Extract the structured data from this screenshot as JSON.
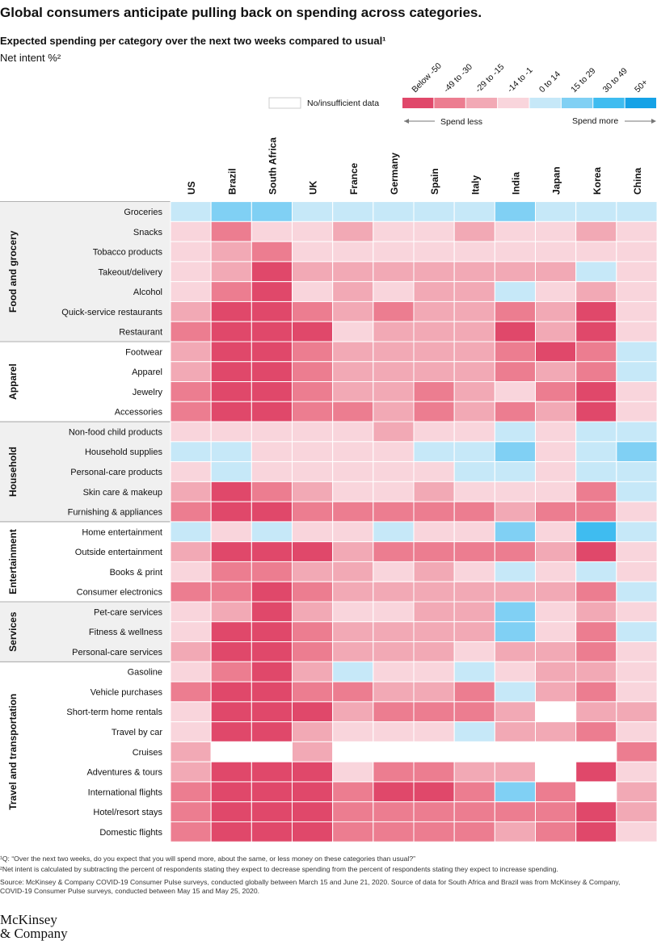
{
  "chart_data": {
    "type": "heatmap",
    "title": "Global consumers anticipate pulling back on spending across categories.",
    "subtitle": "Expected spending per category over the next two weeks compared to usual¹",
    "value_label": "Net intent %²",
    "no_data_label": "No/insufficient data",
    "spend_less": "Spend less",
    "spend_more": "Spend more",
    "legend": [
      {
        "label": "Below -50",
        "color": "#e0486a"
      },
      {
        "label": "-49 to -30",
        "color": "#ec7d90",
        "from": -49
      },
      {
        "label": "-29 to -15",
        "color": "#f2a9b5",
        "from": -29
      },
      {
        "label": "-14 to -1",
        "color": "#f9d5dc",
        "from": -14
      },
      {
        "label": "0 to 14",
        "color": "#c6e8f8",
        "from": 0
      },
      {
        "label": "15 to 29",
        "color": "#80d0f4",
        "from": 15
      },
      {
        "label": "30 to 49",
        "color": "#3fbcf0",
        "from": 30
      },
      {
        "label": "50+",
        "color": "#16a2e6",
        "from": 50
      }
    ],
    "columns": [
      "US",
      "Brazil",
      "South Africa",
      "UK",
      "France",
      "Germany",
      "Spain",
      "Italy",
      "India",
      "Japan",
      "Korea",
      "China"
    ],
    "groups": [
      {
        "name": "Food and grocery",
        "rows": [
          "Groceries",
          "Snacks",
          "Tobacco products",
          "Takeout/delivery",
          "Alcohol",
          "Quick-service restaurants",
          "Restaurant"
        ]
      },
      {
        "name": "Apparel",
        "rows": [
          "Footwear",
          "Apparel",
          "Jewelry",
          "Accessories"
        ]
      },
      {
        "name": "Household",
        "rows": [
          "Non-food child products",
          "Household supplies",
          "Personal-care products",
          "Skin care & makeup",
          "Furnishing & appliances"
        ]
      },
      {
        "name": "Entertainment",
        "rows": [
          "Home entertainment",
          "Outside entertainment",
          "Books & print",
          "Consumer electronics"
        ]
      },
      {
        "name": "Services",
        "rows": [
          "Pet-care services",
          "Fitness & wellness",
          "Personal-care services"
        ]
      },
      {
        "name": "Travel and transportation",
        "rows": [
          "Gasoline",
          "Vehicle purchases",
          "Short-term home rentals",
          "Travel by car",
          "Cruises",
          "Adventures & tours",
          "International flights",
          "Hotel/resort stays",
          "Domestic flights"
        ]
      }
    ],
    "values": [
      [
        7,
        22,
        22,
        7,
        7,
        7,
        7,
        7,
        22,
        7,
        7,
        7
      ],
      [
        -7,
        -40,
        -7,
        -7,
        -22,
        -7,
        -7,
        -22,
        -7,
        -7,
        -22,
        -7
      ],
      [
        -7,
        -22,
        -40,
        -7,
        -7,
        -7,
        -7,
        -7,
        -7,
        -7,
        -7,
        -7
      ],
      [
        -7,
        -22,
        -60,
        -22,
        -22,
        -22,
        -22,
        -22,
        -22,
        -22,
        7,
        -7
      ],
      [
        -7,
        -40,
        -60,
        -7,
        -22,
        -7,
        -22,
        -22,
        7,
        -7,
        -22,
        -7
      ],
      [
        -22,
        -60,
        -60,
        -40,
        -22,
        -40,
        -22,
        -22,
        -40,
        -22,
        -60,
        -7
      ],
      [
        -40,
        -60,
        -60,
        -60,
        -7,
        -22,
        -22,
        -22,
        -60,
        -22,
        -60,
        -7
      ],
      [
        -22,
        -60,
        -60,
        -40,
        -22,
        -22,
        -22,
        -22,
        -40,
        -60,
        -40,
        7
      ],
      [
        -22,
        -60,
        -60,
        -40,
        -22,
        -22,
        -22,
        -22,
        -40,
        -22,
        -40,
        7
      ],
      [
        -40,
        -60,
        -60,
        -40,
        -22,
        -22,
        -40,
        -22,
        -7,
        -40,
        -60,
        -7
      ],
      [
        -40,
        -60,
        -60,
        -40,
        -40,
        -22,
        -40,
        -22,
        -40,
        -22,
        -60,
        -7
      ],
      [
        -7,
        -7,
        -7,
        -7,
        -7,
        -22,
        -7,
        -7,
        7,
        -7,
        7,
        7
      ],
      [
        7,
        7,
        -7,
        -7,
        -7,
        -7,
        7,
        7,
        22,
        -7,
        7,
        22
      ],
      [
        -7,
        7,
        -7,
        -7,
        -7,
        -7,
        -7,
        7,
        7,
        -7,
        7,
        7
      ],
      [
        -22,
        -60,
        -40,
        -22,
        -7,
        -7,
        -22,
        -7,
        -7,
        -7,
        -40,
        7
      ],
      [
        -40,
        -60,
        -60,
        -40,
        -40,
        -40,
        -40,
        -40,
        -22,
        -40,
        -40,
        -7
      ],
      [
        7,
        -7,
        7,
        -7,
        -7,
        7,
        -7,
        -7,
        22,
        -7,
        40,
        7
      ],
      [
        -22,
        -60,
        -60,
        -60,
        -22,
        -40,
        -40,
        -40,
        -40,
        -22,
        -60,
        -7
      ],
      [
        -7,
        -40,
        -40,
        -22,
        -22,
        -7,
        -22,
        -7,
        7,
        -7,
        7,
        -7
      ],
      [
        -40,
        -40,
        -60,
        -40,
        -22,
        -22,
        -22,
        -22,
        -22,
        -22,
        -40,
        7
      ],
      [
        -7,
        -22,
        -60,
        -22,
        -7,
        -7,
        -22,
        -22,
        22,
        -7,
        -22,
        -7
      ],
      [
        -7,
        -60,
        -60,
        -40,
        -22,
        -22,
        -22,
        -22,
        22,
        -7,
        -40,
        7
      ],
      [
        -22,
        -60,
        -60,
        -40,
        -22,
        -22,
        -22,
        -7,
        -22,
        -22,
        -40,
        -7
      ],
      [
        -7,
        -40,
        -60,
        -22,
        7,
        -7,
        -7,
        7,
        -7,
        -22,
        -22,
        -7
      ],
      [
        -40,
        -60,
        -60,
        -40,
        -40,
        -22,
        -22,
        -40,
        7,
        -22,
        -40,
        -7
      ],
      [
        -7,
        -60,
        -60,
        -60,
        -22,
        -40,
        -40,
        -40,
        -22,
        null,
        -22,
        -22
      ],
      [
        -7,
        -60,
        -60,
        -22,
        -7,
        -7,
        -7,
        7,
        -22,
        -22,
        -40,
        -7
      ],
      [
        -22,
        null,
        null,
        -22,
        null,
        null,
        null,
        null,
        null,
        null,
        null,
        -40
      ],
      [
        -22,
        -60,
        -60,
        -60,
        -7,
        -40,
        -40,
        -22,
        -22,
        null,
        -60,
        -7
      ],
      [
        -40,
        -60,
        -60,
        -60,
        -40,
        -60,
        -60,
        -40,
        22,
        -40,
        null,
        -22
      ],
      [
        -40,
        -60,
        -60,
        -60,
        -40,
        -40,
        -40,
        -40,
        -40,
        -40,
        -60,
        -22
      ],
      [
        -40,
        -60,
        -60,
        -60,
        -40,
        -40,
        -40,
        -40,
        -22,
        -40,
        -60,
        -7
      ]
    ],
    "notes": [
      "¹Q: “Over the next two weeks, do you expect that you will spend more, about the same, or less money on these categories than usual?”",
      "²Net intent is calculated by subtracting the percent of respondents stating they expect to decrease spending from the percent of respondents stating they expect to increase spending.",
      "Source: McKinsey & Company COVID-19 Consumer Pulse surveys, conducted globally between March 15 and June 21, 2020. Source of data for South Africa and Brazil was from McKinsey & Company, COVID-19 Consumer Pulse surveys, conducted between May 15 and May 25, 2020."
    ],
    "brand": [
      "McKinsey",
      "& Company"
    ]
  }
}
